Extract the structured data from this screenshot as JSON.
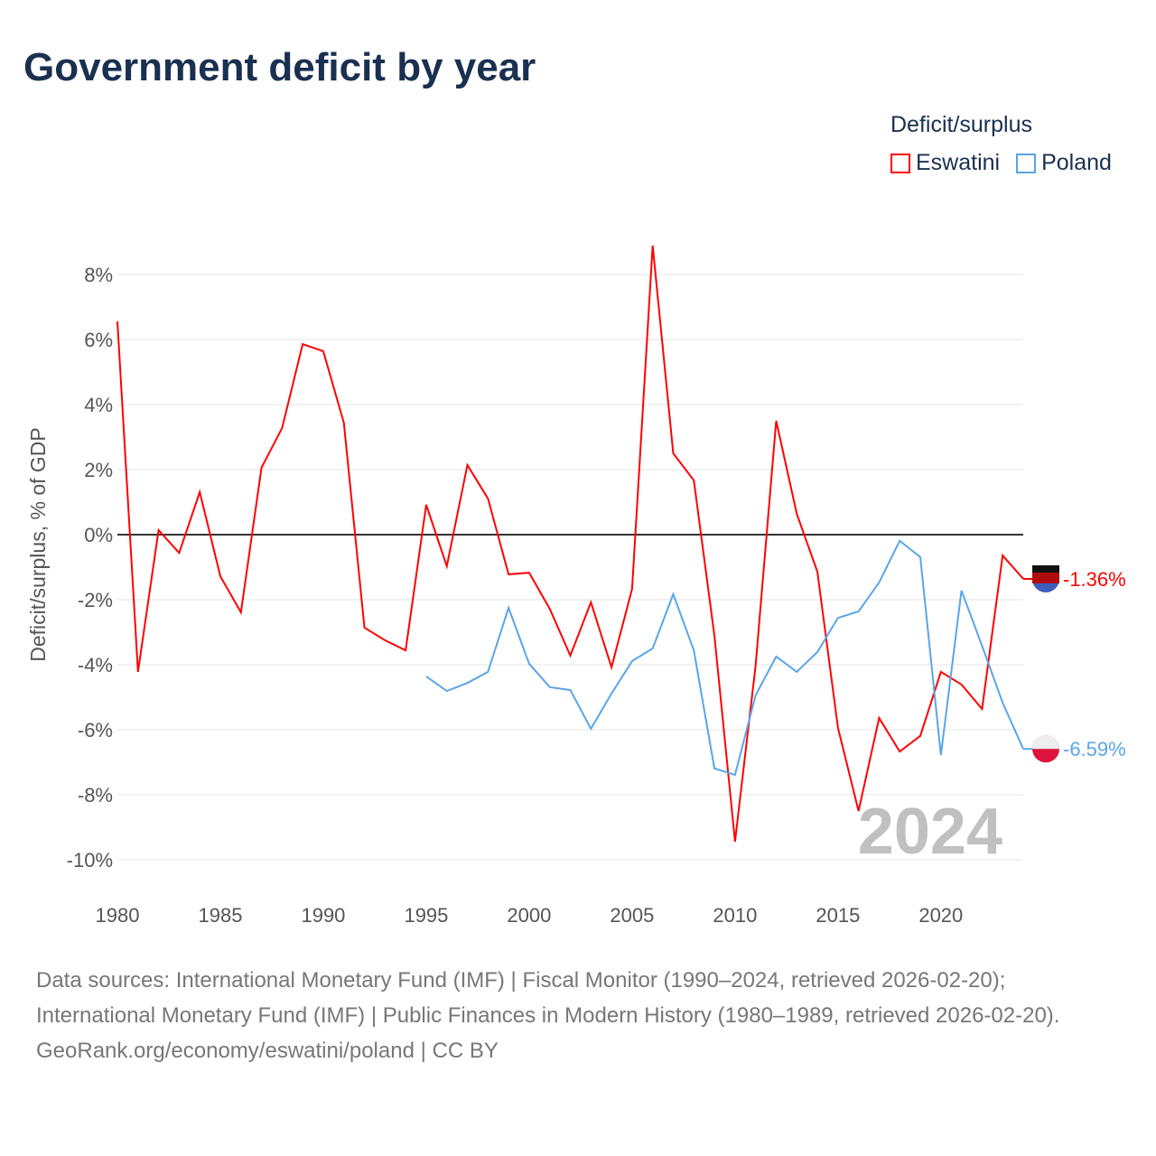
{
  "title": "Government deficit by year",
  "legend": {
    "title": "Deficit/surplus",
    "items": [
      {
        "label": "Eswatini",
        "color": "#ff0000"
      },
      {
        "label": "Poland",
        "color": "#5aa5e8"
      }
    ]
  },
  "year_watermark": "2024",
  "source": {
    "line1": "Data sources: International Monetary Fund (IMF) | Fiscal Monitor (1990–2024, retrieved 2026-02-20); International Monetary Fund (IMF) | Public Finances in Modern History (1980–1989, retrieved 2026-02-20).",
    "line2": "GeoRank.org/economy/eswatini/poland | CC BY"
  },
  "chart_data": {
    "type": "line",
    "title": "Government deficit by year",
    "ylabel": "Deficit/surplus, % of GDP",
    "xlabel": "",
    "ylim": [
      -11,
      9.5
    ],
    "xlim": [
      1980,
      2024
    ],
    "yticks": [
      8,
      6,
      4,
      2,
      0,
      -2,
      -4,
      -6,
      -8,
      -10
    ],
    "ytick_labels": [
      "8%",
      "6%",
      "4%",
      "2%",
      "0%",
      "-2%",
      "-4%",
      "-6%",
      "-8%",
      "-10%"
    ],
    "xticks": [
      1980,
      1985,
      1990,
      1995,
      2000,
      2005,
      2010,
      2015,
      2020
    ],
    "xtick_labels": [
      "1980",
      "1985",
      "1990",
      "1995",
      "2000",
      "2005",
      "2010",
      "2015",
      "2020"
    ],
    "grid": true,
    "legend_position": "top-right",
    "series": [
      {
        "name": "Eswatini",
        "color": "#ff0000",
        "end_label": "-1.36%",
        "start_year": 1980,
        "values": [
          6.56,
          -4.22,
          0.14,
          -0.56,
          1.31,
          -1.28,
          -2.39,
          2.06,
          3.28,
          5.86,
          5.64,
          3.44,
          -2.86,
          -3.25,
          -3.56,
          0.92,
          -0.97,
          2.14,
          1.11,
          -1.22,
          -1.17,
          -2.28,
          -3.72,
          -2.08,
          -4.08,
          -1.67,
          8.89,
          2.5,
          1.67,
          -3.11,
          -9.44,
          -4.03,
          3.5,
          0.64,
          -1.14,
          -5.94,
          -8.5,
          -5.64,
          -6.67,
          -6.19,
          -4.22,
          -4.61,
          -5.36,
          -0.64,
          -1.36
        ]
      },
      {
        "name": "Poland",
        "color": "#5aa5e8",
        "end_label": "-6.59%",
        "start_year": 1995,
        "values": [
          -4.36,
          -4.81,
          -4.56,
          -4.22,
          -2.25,
          -3.97,
          -4.69,
          -4.78,
          -5.97,
          -4.89,
          -3.89,
          -3.5,
          -1.83,
          -3.56,
          -7.19,
          -7.39,
          -4.94,
          -3.75,
          -4.22,
          -3.61,
          -2.56,
          -2.36,
          -1.47,
          -0.19,
          -0.69,
          -6.78,
          -1.72,
          -3.42,
          -5.17,
          -6.59
        ]
      }
    ]
  }
}
